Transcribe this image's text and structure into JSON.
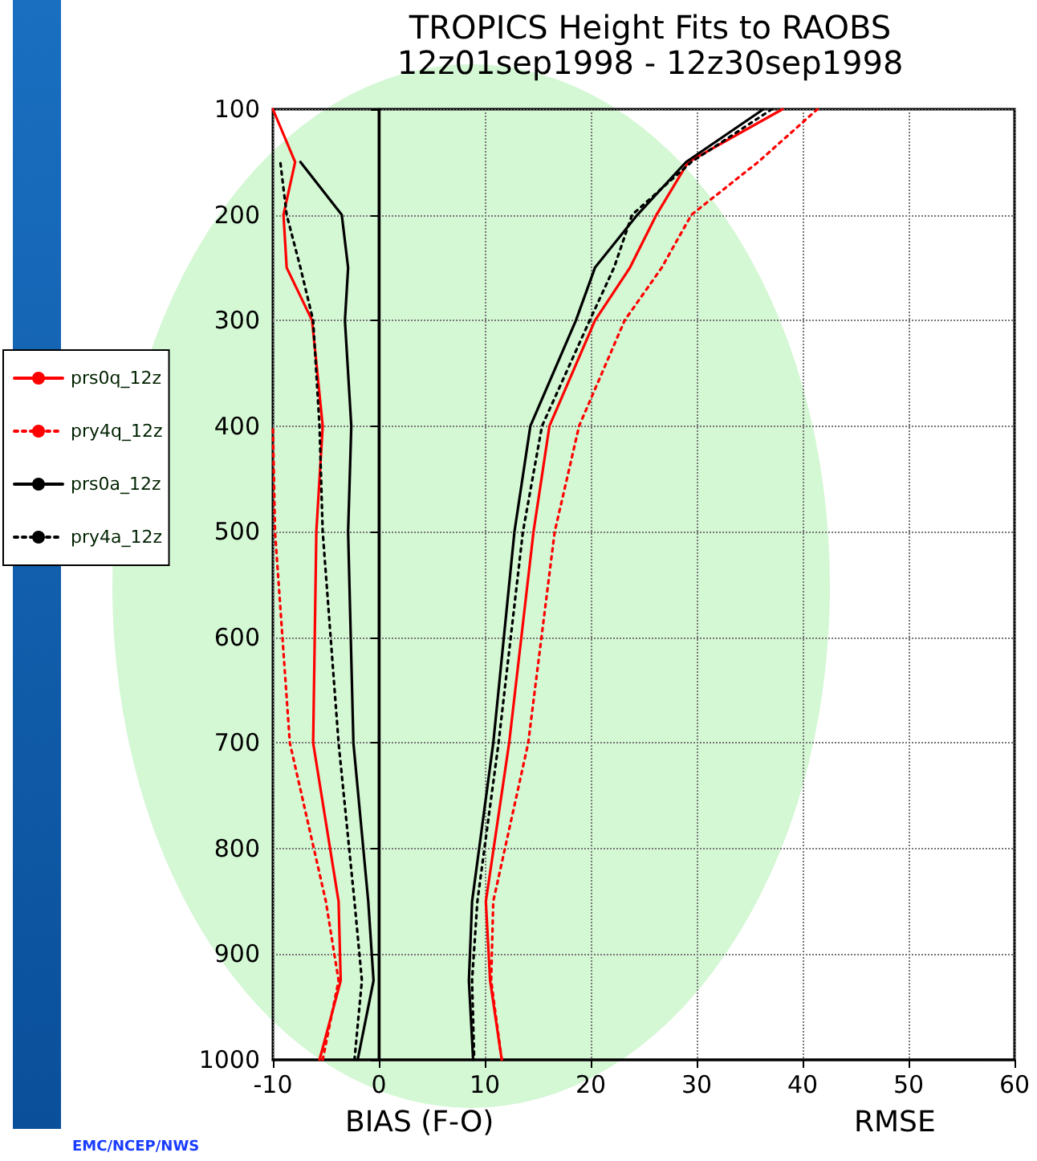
{
  "chart_data": {
    "type": "line",
    "title": "TROPICS Height Fits to RAOBS",
    "subtitle": "12z01sep1998 - 12z30sep1998",
    "xlabel": "BIAS (F-O)",
    "annotations": [
      "RMSE",
      "EMC/NCEP/NWS"
    ],
    "xlim": [
      -10,
      60
    ],
    "xticks": [
      -10,
      0,
      10,
      20,
      30,
      40,
      50,
      60
    ],
    "ylim": [
      1000,
      100
    ],
    "yticks": [
      100,
      200,
      300,
      400,
      500,
      600,
      700,
      800,
      900,
      1000
    ],
    "grid": true,
    "legend": "left",
    "ref_lines": [
      {
        "axis": "x",
        "value": 0,
        "color": "#000000",
        "line_style": "solid"
      }
    ],
    "series": [
      {
        "name": "prs0q_12z",
        "color": "#ff0000",
        "line_style": "solid",
        "x": [
          -5.6,
          -3.6,
          -3.8,
          -6.2,
          -5.9,
          -5.3,
          -6.3,
          -8.7,
          -9.0,
          -7.9,
          -10,
          null,
          38.1,
          29.2,
          26.2,
          23.7,
          20.4,
          16.1,
          14.6,
          12.3,
          10.1,
          10.5,
          11.6
        ],
        "values": [
          1000,
          925,
          850,
          700,
          500,
          400,
          300,
          250,
          200,
          150,
          100,
          null,
          100,
          150,
          200,
          250,
          300,
          400,
          500,
          700,
          850,
          925,
          1000
        ]
      },
      {
        "name": "pry4q_12z",
        "color": "#ff0000",
        "line_style": "dotted",
        "x": [
          -5.3,
          -3.8,
          -5.0,
          -8.4,
          -9.8,
          -10,
          null,
          41.4,
          35.8,
          29.5,
          26.7,
          23.2,
          18.9,
          16.6,
          14.1,
          10.8,
          10.6,
          11.6
        ],
        "values": [
          1000,
          925,
          850,
          700,
          500,
          400,
          null,
          100,
          150,
          200,
          250,
          300,
          400,
          500,
          700,
          850,
          925,
          1000
        ]
      },
      {
        "name": "prs0a_12z",
        "color": "#000000",
        "line_style": "solid",
        "x": [
          -2.0,
          -0.5,
          -1.0,
          -2.4,
          -2.9,
          -2.6,
          -3.2,
          -2.9,
          -3.5,
          -7.4,
          null,
          36.3,
          29.0,
          24.4,
          20.4,
          18.6,
          14.3,
          12.8,
          10.8,
          8.8,
          8.5,
          8.9
        ],
        "values": [
          1000,
          925,
          850,
          700,
          500,
          400,
          300,
          250,
          200,
          150,
          null,
          100,
          150,
          200,
          250,
          300,
          400,
          500,
          700,
          850,
          925,
          1000
        ]
      },
      {
        "name": "pry4a_12z",
        "color": "#000000",
        "line_style": "dotted",
        "x": [
          -2.3,
          -1.6,
          -2.3,
          -3.8,
          -5.3,
          -5.6,
          -6.2,
          -7.4,
          -8.7,
          -9.3,
          null,
          37.1,
          29.5,
          23.9,
          22.2,
          19.9,
          15.4,
          13.6,
          11.3,
          9.3,
          8.8,
          9.0
        ],
        "values": [
          1000,
          925,
          850,
          700,
          500,
          400,
          300,
          250,
          200,
          150,
          null,
          100,
          150,
          200,
          250,
          300,
          400,
          500,
          700,
          850,
          925,
          1000
        ]
      }
    ]
  }
}
